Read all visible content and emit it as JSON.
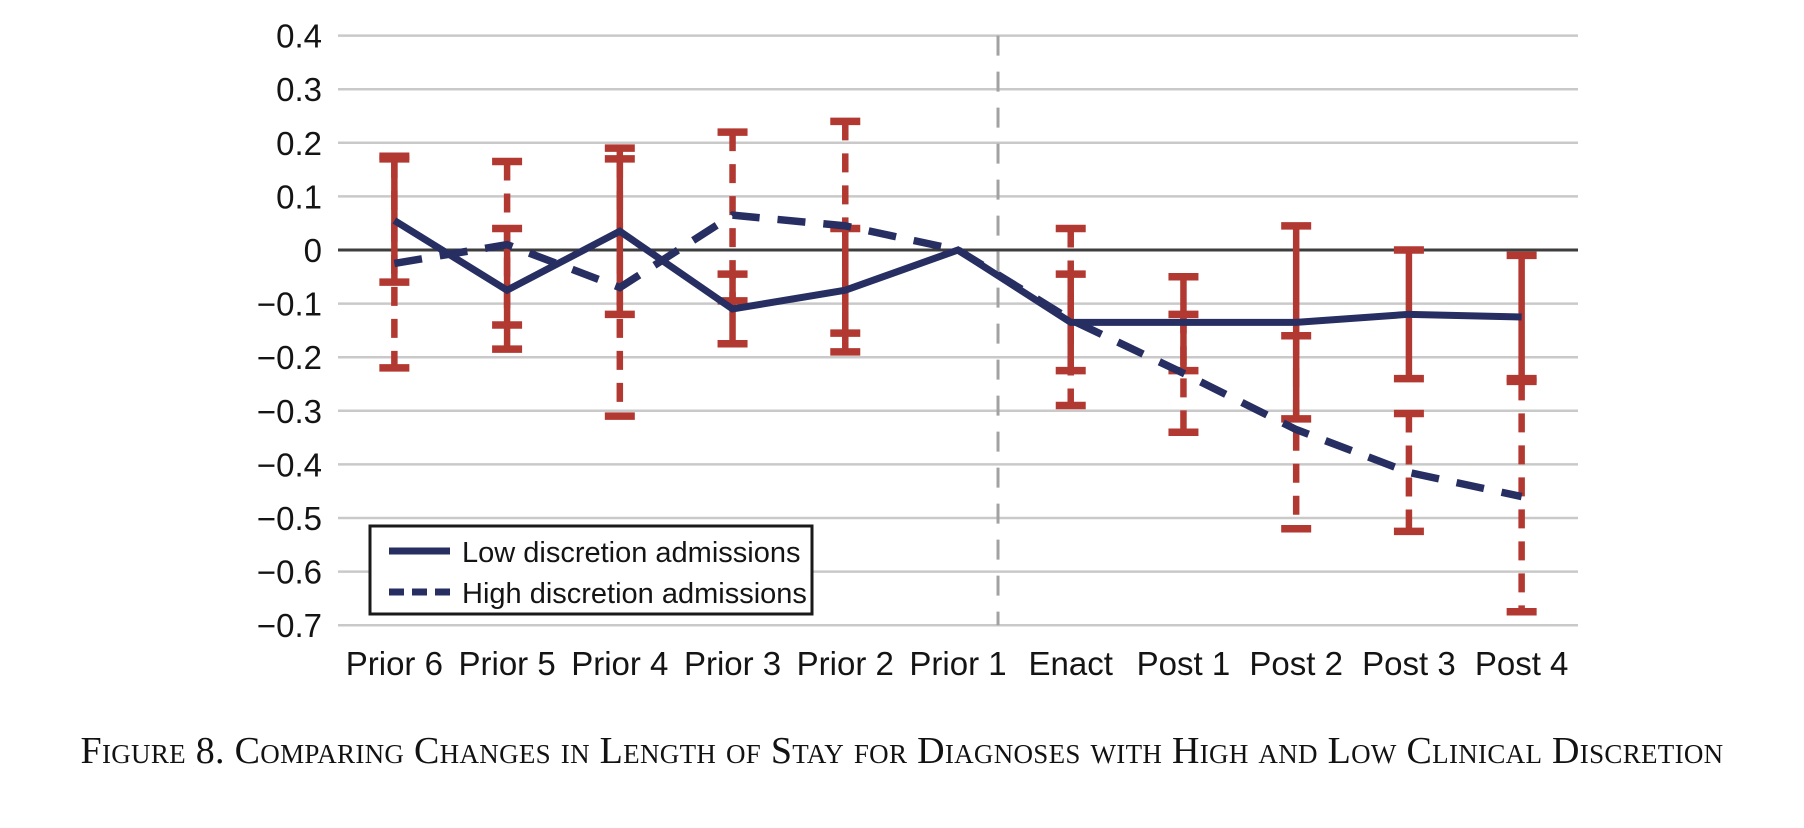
{
  "figure": {
    "caption": "Figure 8. Comparing Changes in Length of Stay for Diagnoses with High and Low Clinical Discretion"
  },
  "legend": {
    "items": [
      {
        "label": "Low discretion admissions",
        "line_style": "solid"
      },
      {
        "label": "High discretion admissions",
        "line_style": "dashed"
      }
    ]
  },
  "colors": {
    "series_line": "#272e62",
    "error_bar": "#b23931",
    "gridline": "#c9c9c9",
    "zero_line": "#3d3d3d",
    "policy_vline": "#a2a2a2",
    "text": "#141414",
    "legend_border": "#1a1a1a",
    "background": "#ffffff"
  },
  "chart_data": {
    "type": "line",
    "title": "",
    "xlabel": "",
    "ylabel": "",
    "categories": [
      "Prior 6",
      "Prior 5",
      "Prior 4",
      "Prior 3",
      "Prior 2",
      "Prior 1",
      "Enact",
      "Post 1",
      "Post 2",
      "Post 3",
      "Post 4"
    ],
    "y_ticks": [
      0.4,
      0.3,
      0.2,
      0.1,
      0,
      -0.1,
      -0.2,
      -0.3,
      -0.4,
      -0.5,
      -0.6,
      -0.7
    ],
    "y_tick_labels": [
      "0.4",
      "0.3",
      "0.2",
      "0.1",
      "0",
      "−0.1",
      "−0.2",
      "−0.3",
      "−0.4",
      "−0.5",
      "−0.6",
      "−0.7"
    ],
    "ylim": [
      -0.7,
      0.4
    ],
    "grid": true,
    "zero_reference_line": true,
    "policy_vline_between": [
      "Prior 1",
      "Enact"
    ],
    "legend_position": "inside-bottom-left",
    "series": [
      {
        "name": "Low discretion admissions",
        "line_style": "solid",
        "error_bar_style": "solid",
        "values": [
          0.055,
          -0.075,
          0.035,
          -0.11,
          -0.075,
          0,
          -0.135,
          -0.135,
          -0.135,
          -0.12,
          -0.125
        ],
        "ci_upper": [
          0.175,
          0.04,
          0.19,
          -0.045,
          0.04,
          null,
          -0.045,
          -0.05,
          0.045,
          0.0,
          -0.01
        ],
        "ci_lower": [
          -0.06,
          -0.185,
          -0.12,
          -0.175,
          -0.19,
          null,
          -0.225,
          -0.225,
          -0.315,
          -0.24,
          -0.24
        ]
      },
      {
        "name": "High discretion admissions",
        "line_style": "dashed",
        "error_bar_style": "dashed",
        "values": [
          -0.025,
          0.01,
          -0.07,
          0.065,
          0.045,
          0,
          -0.13,
          -0.23,
          -0.335,
          -0.415,
          -0.46
        ],
        "ci_upper": [
          0.17,
          0.165,
          0.17,
          0.22,
          0.24,
          null,
          0.04,
          -0.12,
          -0.16,
          -0.305,
          -0.245
        ],
        "ci_lower": [
          -0.22,
          -0.14,
          -0.31,
          -0.095,
          -0.155,
          null,
          -0.29,
          -0.34,
          -0.52,
          -0.525,
          -0.675
        ]
      }
    ]
  }
}
